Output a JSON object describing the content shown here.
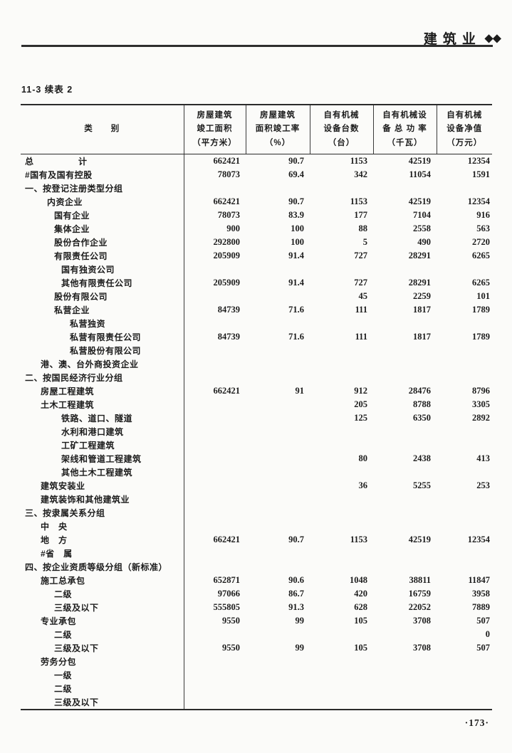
{
  "header": {
    "title": "建筑业",
    "diamonds": "◆◆"
  },
  "table": {
    "caption": "11-3 续表 2",
    "columns": [
      {
        "lines": [
          "类　　别"
        ]
      },
      {
        "lines": [
          "房屋建筑",
          "竣工面积",
          "（平方米）"
        ]
      },
      {
        "lines": [
          "房屋建筑",
          "面积竣工率",
          "（%）"
        ]
      },
      {
        "lines": [
          "自有机械",
          "设备台数",
          "（台）"
        ]
      },
      {
        "lines": [
          "自有机械设",
          "备 总 功 率",
          "（千瓦）"
        ]
      },
      {
        "lines": [
          "自有机械",
          "设备净值",
          "（万元）"
        ]
      }
    ],
    "rows": [
      {
        "label": "总　　　　　计",
        "indent": 0,
        "values": [
          "662421",
          "90.7",
          "1153",
          "42519",
          "12354"
        ]
      },
      {
        "label": "#国有及国有控股",
        "indent": 0,
        "values": [
          "78073",
          "69.4",
          "342",
          "11054",
          "1591"
        ]
      },
      {
        "label": "一、按登记注册类型分组",
        "indent": 0,
        "values": [
          "",
          "",
          "",
          "",
          ""
        ]
      },
      {
        "label": "内资企业",
        "indent": 2,
        "values": [
          "662421",
          "90.7",
          "1153",
          "42519",
          "12354"
        ]
      },
      {
        "label": "国有企业",
        "indent": 3,
        "values": [
          "78073",
          "83.9",
          "177",
          "7104",
          "916"
        ]
      },
      {
        "label": "集体企业",
        "indent": 3,
        "values": [
          "900",
          "100",
          "88",
          "2558",
          "563"
        ]
      },
      {
        "label": "股份合作企业",
        "indent": 3,
        "values": [
          "292800",
          "100",
          "5",
          "490",
          "2720"
        ]
      },
      {
        "label": "有限责任公司",
        "indent": 3,
        "values": [
          "205909",
          "91.4",
          "727",
          "28291",
          "6265"
        ]
      },
      {
        "label": "国有独资公司",
        "indent": 4,
        "values": [
          "",
          "",
          "",
          "",
          ""
        ]
      },
      {
        "label": "其他有限责任公司",
        "indent": 4,
        "values": [
          "205909",
          "91.4",
          "727",
          "28291",
          "6265"
        ]
      },
      {
        "label": "股份有限公司",
        "indent": 3,
        "values": [
          "",
          "",
          "45",
          "2259",
          "101"
        ]
      },
      {
        "label": "私营企业",
        "indent": 3,
        "values": [
          "84739",
          "71.6",
          "111",
          "1817",
          "1789"
        ]
      },
      {
        "label": "私营独资",
        "indent": 5,
        "values": [
          "",
          "",
          "",
          "",
          ""
        ]
      },
      {
        "label": "私营有限责任公司",
        "indent": 5,
        "values": [
          "84739",
          "71.6",
          "111",
          "1817",
          "1789"
        ]
      },
      {
        "label": "私营股份有限公司",
        "indent": 5,
        "values": [
          "",
          "",
          "",
          "",
          ""
        ]
      },
      {
        "label": "港、澳、台外商投资企业",
        "indent": 1,
        "values": [
          "",
          "",
          "",
          "",
          ""
        ]
      },
      {
        "label": "二、按国民经济行业分组",
        "indent": 0,
        "values": [
          "",
          "",
          "",
          "",
          ""
        ]
      },
      {
        "label": "房屋工程建筑",
        "indent": 1,
        "values": [
          "662421",
          "91",
          "912",
          "28476",
          "8796"
        ]
      },
      {
        "label": "土木工程建筑",
        "indent": 1,
        "values": [
          "",
          "",
          "205",
          "8788",
          "3305"
        ]
      },
      {
        "label": "铁路、道口、隧道",
        "indent": 4,
        "values": [
          "",
          "",
          "125",
          "6350",
          "2892"
        ]
      },
      {
        "label": "水利和港口建筑",
        "indent": 4,
        "values": [
          "",
          "",
          "",
          "",
          ""
        ]
      },
      {
        "label": "工矿工程建筑",
        "indent": 4,
        "values": [
          "",
          "",
          "",
          "",
          ""
        ]
      },
      {
        "label": "架线和管道工程建筑",
        "indent": 4,
        "values": [
          "",
          "",
          "80",
          "2438",
          "413"
        ]
      },
      {
        "label": "其他土木工程建筑",
        "indent": 4,
        "values": [
          "",
          "",
          "",
          "",
          ""
        ]
      },
      {
        "label": "建筑安装业",
        "indent": 1,
        "values": [
          "",
          "",
          "36",
          "5255",
          "253"
        ]
      },
      {
        "label": "建筑装饰和其他建筑业",
        "indent": 1,
        "values": [
          "",
          "",
          "",
          "",
          ""
        ]
      },
      {
        "label": "三、按隶属关系分组",
        "indent": 0,
        "values": [
          "",
          "",
          "",
          "",
          ""
        ]
      },
      {
        "label": "中　央",
        "indent": 1,
        "values": [
          "",
          "",
          "",
          "",
          ""
        ]
      },
      {
        "label": "地　方",
        "indent": 1,
        "values": [
          "662421",
          "90.7",
          "1153",
          "42519",
          "12354"
        ]
      },
      {
        "label": "#省　属",
        "indent": 1,
        "values": [
          "",
          "",
          "",
          "",
          ""
        ]
      },
      {
        "label": "四、按企业资质等级分组（新标准）",
        "indent": 0,
        "values": [
          "",
          "",
          "",
          "",
          ""
        ]
      },
      {
        "label": "施工总承包",
        "indent": 1,
        "values": [
          "652871",
          "90.6",
          "1048",
          "38811",
          "11847"
        ]
      },
      {
        "label": "二级",
        "indent": 3,
        "values": [
          "97066",
          "86.7",
          "420",
          "16759",
          "3958"
        ]
      },
      {
        "label": "三级及以下",
        "indent": 3,
        "values": [
          "555805",
          "91.3",
          "628",
          "22052",
          "7889"
        ]
      },
      {
        "label": "专业承包",
        "indent": 1,
        "values": [
          "9550",
          "99",
          "105",
          "3708",
          "507"
        ]
      },
      {
        "label": "二级",
        "indent": 3,
        "values": [
          "",
          "",
          "",
          "",
          "0"
        ]
      },
      {
        "label": "三级及以下",
        "indent": 3,
        "values": [
          "9550",
          "99",
          "105",
          "3708",
          "507"
        ]
      },
      {
        "label": "劳务分包",
        "indent": 1,
        "values": [
          "",
          "",
          "",
          "",
          ""
        ]
      },
      {
        "label": "一级",
        "indent": 3,
        "values": [
          "",
          "",
          "",
          "",
          ""
        ]
      },
      {
        "label": "二级",
        "indent": 3,
        "values": [
          "",
          "",
          "",
          "",
          ""
        ]
      },
      {
        "label": "三级及以下",
        "indent": 3,
        "values": [
          "",
          "",
          "",
          "",
          ""
        ]
      }
    ]
  },
  "footer": {
    "page_number": "·173·"
  }
}
